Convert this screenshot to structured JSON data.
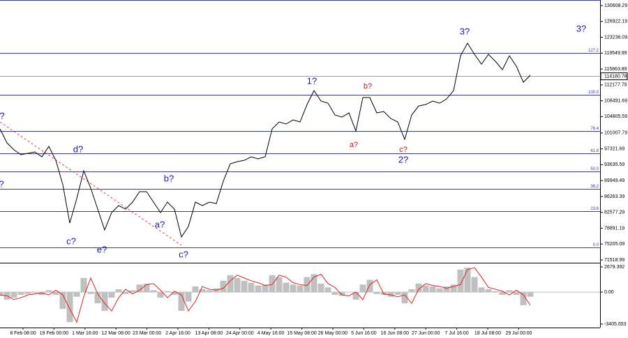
{
  "chart_data": {
    "type": "line",
    "ylim": [
      70871,
      131903
    ],
    "yticks": [
      130608.29,
      126922.19,
      123236.09,
      119549.99,
      115863.89,
      112177.79,
      108491.69,
      104805.59,
      101007.79,
      97321.69,
      93635.59,
      89949.49,
      86263.39,
      82577.29,
      78891.19,
      75205.09,
      71518.99
    ],
    "xticks": [
      "8 Feb 08:00",
      "19 Feb 00:00",
      "1 Mar 16:00",
      "12 Mar 08:00",
      "23 Mar 00:00",
      "2 Apr 16:00",
      "13 Apr 08:00",
      "24 Apr 00:00",
      "4 May 16:00",
      "15 May 08:00",
      "26 May 00:00",
      "5 Jun 16:00",
      "16 Jun 08:00",
      "27 Jun 00:00",
      "7 Jul 16:00",
      "18 Jul 08:00",
      "29 Jul 00:00"
    ],
    "current_price": 114180.78,
    "levels": [
      {
        "label": "127.2",
        "value": 119600
      },
      {
        "label": "100.0",
        "value": 109885
      },
      {
        "label": "76.4",
        "value": 101466
      },
      {
        "label": "61.8",
        "value": 96285
      },
      {
        "label": "50.0",
        "value": 92076
      },
      {
        "label": "38.2",
        "value": 88028
      },
      {
        "label": "23.6",
        "value": 82847
      },
      {
        "label": "0.0",
        "value": 74428
      }
    ],
    "series": [
      {
        "color": "#000000",
        "values": [
          101951,
          98713,
          97094,
          95960,
          96285,
          96609,
          95476,
          97904,
          94666,
          88999,
          80095,
          85761,
          92238,
          88190,
          83333,
          78476,
          82523,
          84143,
          83333,
          84952,
          87380,
          87380,
          84952,
          82523,
          84952,
          83333,
          76857,
          79285,
          84952,
          84143,
          84952,
          84628,
          89809,
          93856,
          94342,
          94666,
          95476,
          94990,
          95476,
          101951,
          103570,
          103085,
          104056,
          103570,
          107618,
          110856,
          108428,
          107942,
          105190,
          104704,
          105675,
          101466,
          109237,
          109237,
          105675,
          105999,
          104380,
          103570,
          99523,
          105190,
          107294,
          107618,
          108428,
          107942,
          108913,
          110856,
          118951,
          121865,
          119275,
          117008,
          119275,
          117656,
          115713,
          118951,
          116522,
          112799,
          114418
        ]
      }
    ],
    "annotations": [
      {
        "text": "?",
        "color": "#1a1aa8"
      },
      {
        "text": "?",
        "color": "#1a1aa8"
      },
      {
        "text": "d?",
        "color": "#1a1aa8"
      },
      {
        "text": "c?",
        "color": "#1a1aa8"
      },
      {
        "text": "e?",
        "color": "#1a1aa8"
      },
      {
        "text": "b?",
        "color": "#1a1aa8"
      },
      {
        "text": "a?",
        "color": "#1a1aa8"
      },
      {
        "text": "c?",
        "color": "#1a1aa8"
      },
      {
        "text": "1?",
        "color": "#1a1aa8"
      },
      {
        "text": "b?",
        "color": "#cc1111"
      },
      {
        "text": "a?",
        "color": "#cc1111"
      },
      {
        "text": "c?",
        "color": "#cc1111"
      },
      {
        "text": "2?",
        "color": "#1a1aa8"
      },
      {
        "text": "3?",
        "color": "#1a1aa8"
      },
      {
        "text": "3?",
        "color": "#1a1aa8"
      }
    ],
    "oscillator": {
      "type": "bar",
      "ylim": [
        -3777,
        3050
      ],
      "yticks": [
        2679.392,
        {
          "value": 0,
          "label": "0.00"
        },
        -3405.653
      ],
      "series": [
        {
          "color": "#c0c0c0",
          "values": [
            -400,
            -800,
            -600,
            -300,
            -200,
            -100,
            -300,
            200,
            -300,
            -1800,
            -3200,
            -500,
            1500,
            -200,
            -1200,
            -2000,
            -600,
            300,
            -200,
            200,
            800,
            900,
            200,
            -600,
            100,
            -300,
            -2000,
            -1000,
            600,
            300,
            200,
            400,
            1200,
            1800,
            1500,
            1200,
            1000,
            700,
            800,
            1800,
            1600,
            1000,
            800,
            700,
            1600,
            1900,
            900,
            500,
            -300,
            -400,
            0,
            -800,
            800,
            1300,
            -200,
            -300,
            -500,
            -300,
            -1200,
            300,
            900,
            700,
            600,
            400,
            600,
            800,
            2400,
            2600,
            1600,
            500,
            300,
            100,
            -300,
            200,
            -300,
            -1400,
            -500
          ]
        },
        {
          "color": "#e02020",
          "values": [
            -300,
            -400,
            -800,
            -600,
            -300,
            -200,
            -100,
            -300,
            200,
            -300,
            -1800,
            -3200,
            -500,
            1500,
            -200,
            -1200,
            -2000,
            -600,
            300,
            -200,
            200,
            800,
            900,
            200,
            -600,
            100,
            -300,
            -2000,
            -1000,
            600,
            300,
            200,
            400,
            1200,
            1800,
            1500,
            1200,
            1000,
            700,
            800,
            1800,
            1600,
            1000,
            800,
            700,
            1600,
            1900,
            900,
            500,
            -300,
            -400,
            0,
            -800,
            800,
            1300,
            -200,
            -300,
            -500,
            -300,
            -1200,
            300,
            900,
            700,
            600,
            400,
            600,
            800,
            2400,
            2600,
            1600,
            500,
            300,
            100,
            -300,
            200,
            -300,
            -1400
          ]
        }
      ]
    }
  }
}
